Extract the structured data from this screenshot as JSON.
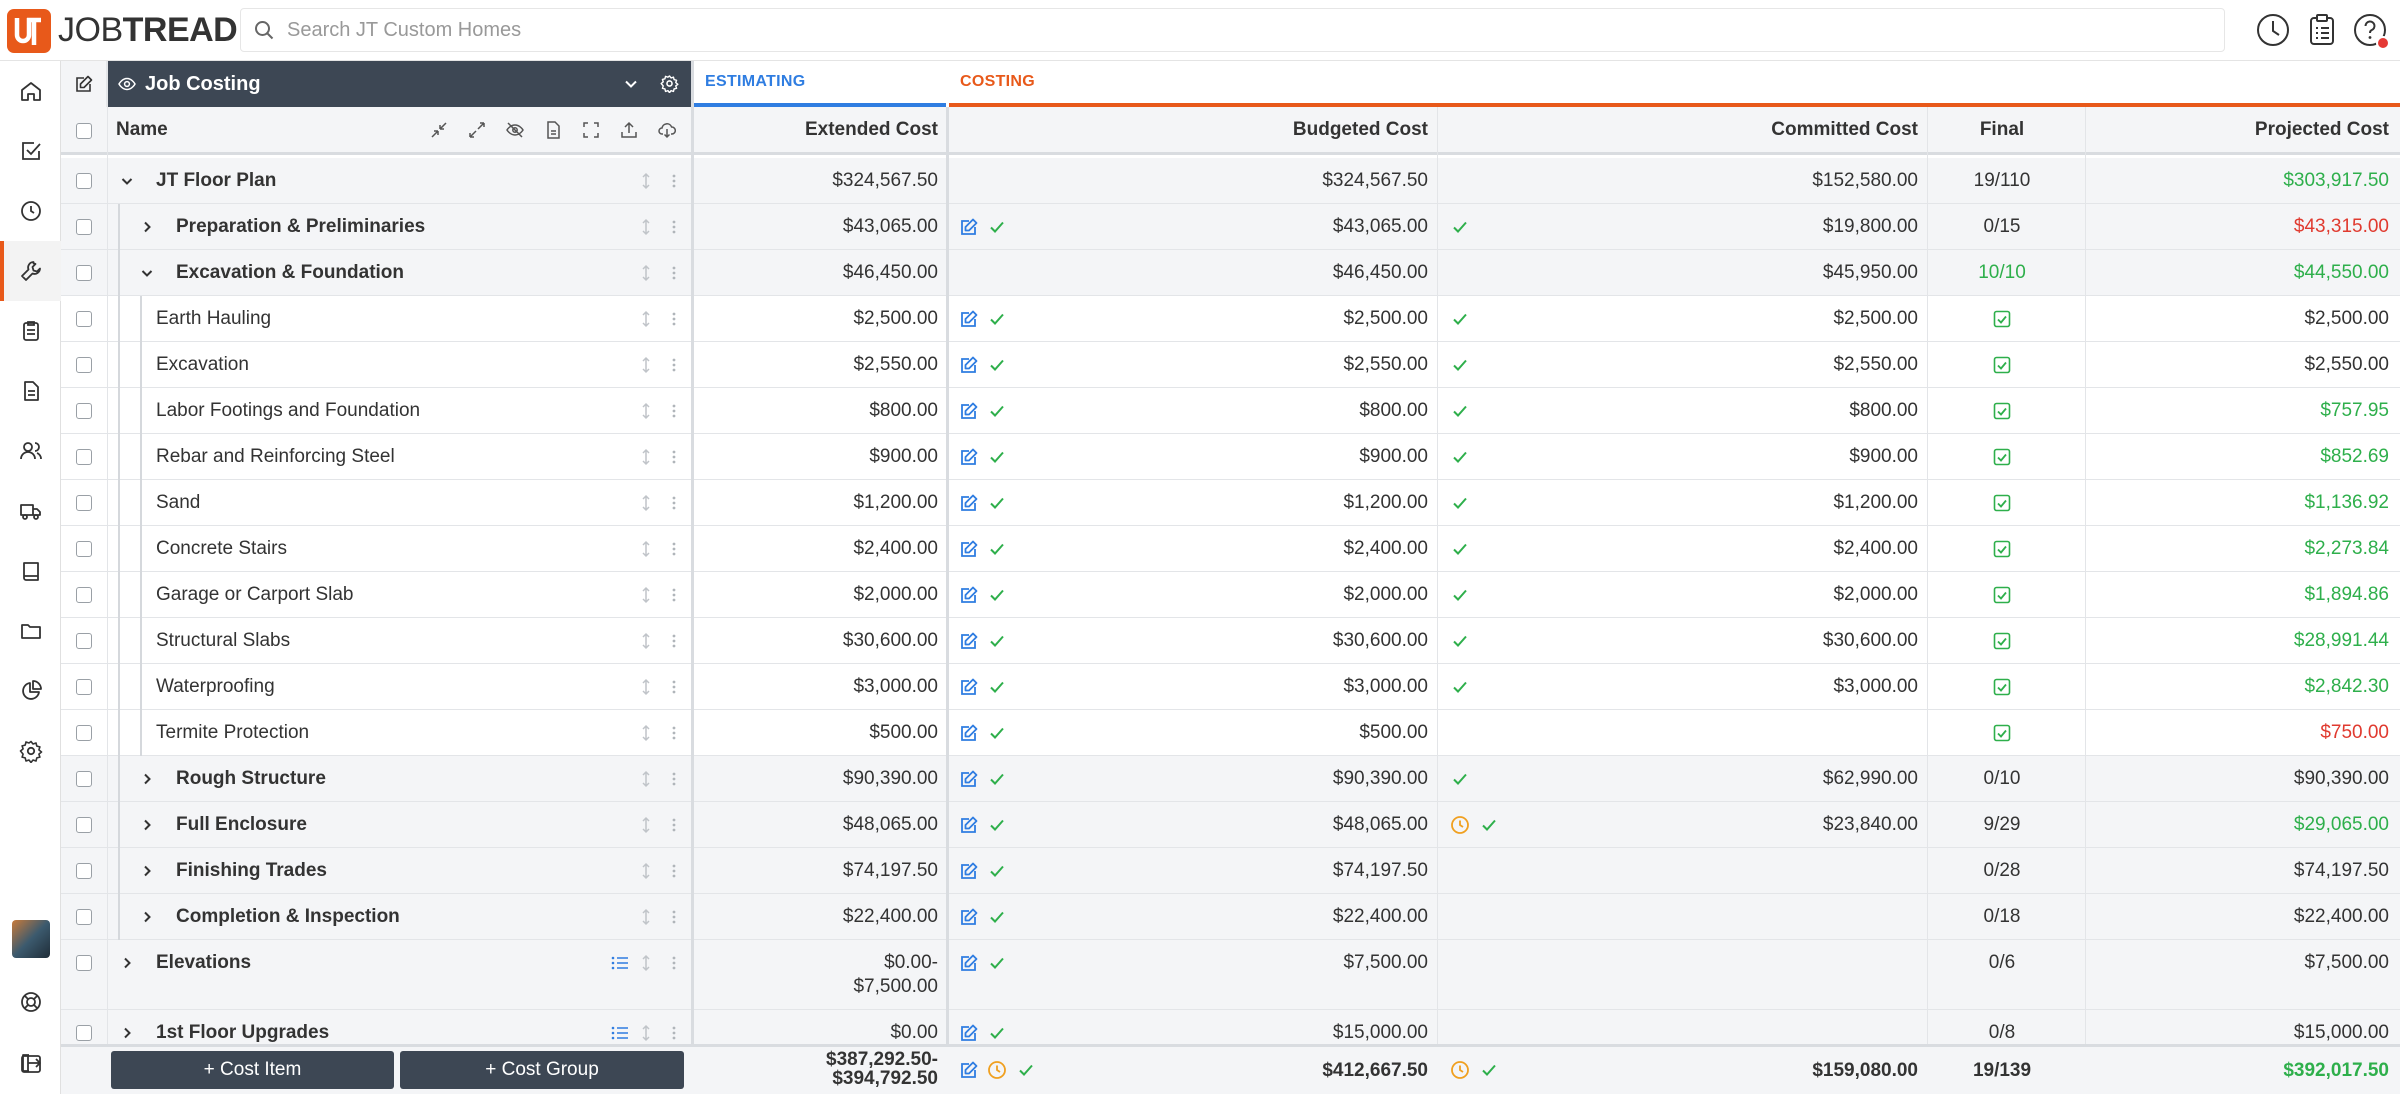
{
  "app": {
    "logo_text_light": "JOB",
    "logo_text_bold": "TREAD"
  },
  "search": {
    "placeholder": "Search JT Custom Homes"
  },
  "view": {
    "title": "Job Costing"
  },
  "phases": {
    "estimating": "ESTIMATING",
    "costing": "COSTING"
  },
  "columns": {
    "name": "Name",
    "extended_cost": "Extended Cost",
    "budgeted_cost": "Budgeted Cost",
    "committed_cost": "Committed Cost",
    "final": "Final",
    "projected_cost": "Projected Cost"
  },
  "colors": {
    "accent": "#e8591a",
    "estimating": "#2f7de1",
    "header_dark": "#3d4754",
    "green": "#2eaf4b",
    "red": "#e03a2f",
    "clock": "#f0a020"
  },
  "sidebar_icons": [
    "home-icon",
    "tasks-icon",
    "clock-icon",
    "wrench-icon",
    "clipboard-icon",
    "document-icon",
    "users-icon",
    "truck-icon",
    "book-icon",
    "folder-icon",
    "pie-chart-icon",
    "settings-icon"
  ],
  "rows": [
    {
      "level": 0,
      "kind": "group",
      "expanded": true,
      "name": "JT Floor Plan",
      "extended": "$324,567.50",
      "budgeted": "$324,567.50",
      "budget_icons": false,
      "committed": "$152,580.00",
      "committed_icons": [],
      "final": "19/110",
      "final_color": "",
      "projected": "$303,917.50",
      "projected_color": "green"
    },
    {
      "level": 1,
      "kind": "group",
      "expanded": false,
      "name": "Preparation & Preliminaries",
      "extended": "$43,065.00",
      "budgeted": "$43,065.00",
      "budget_icons": true,
      "committed": "$19,800.00",
      "committed_icons": [
        "check"
      ],
      "final": "0/15",
      "final_color": "",
      "projected": "$43,315.00",
      "projected_color": "red"
    },
    {
      "level": 1,
      "kind": "group",
      "expanded": true,
      "name": "Excavation & Foundation",
      "extended": "$46,450.00",
      "budgeted": "$46,450.00",
      "budget_icons": false,
      "committed": "$45,950.00",
      "committed_icons": [],
      "final": "10/10",
      "final_color": "green",
      "projected": "$44,550.00",
      "projected_color": "green"
    },
    {
      "level": 2,
      "kind": "item",
      "name": "Earth Hauling",
      "extended": "$2,500.00",
      "budgeted": "$2,500.00",
      "budget_icons": true,
      "committed": "$2,500.00",
      "committed_icons": [
        "check"
      ],
      "final": "",
      "final_check": true,
      "projected": "$2,500.00",
      "projected_color": ""
    },
    {
      "level": 2,
      "kind": "item",
      "name": "Excavation",
      "extended": "$2,550.00",
      "budgeted": "$2,550.00",
      "budget_icons": true,
      "committed": "$2,550.00",
      "committed_icons": [
        "check"
      ],
      "final": "",
      "final_check": true,
      "projected": "$2,550.00",
      "projected_color": ""
    },
    {
      "level": 2,
      "kind": "item",
      "name": "Labor Footings and Foundation",
      "extended": "$800.00",
      "budgeted": "$800.00",
      "budget_icons": true,
      "committed": "$800.00",
      "committed_icons": [
        "check"
      ],
      "final": "",
      "final_check": true,
      "projected": "$757.95",
      "projected_color": "green"
    },
    {
      "level": 2,
      "kind": "item",
      "name": "Rebar and Reinforcing Steel",
      "extended": "$900.00",
      "budgeted": "$900.00",
      "budget_icons": true,
      "committed": "$900.00",
      "committed_icons": [
        "check"
      ],
      "final": "",
      "final_check": true,
      "projected": "$852.69",
      "projected_color": "green"
    },
    {
      "level": 2,
      "kind": "item",
      "name": "Sand",
      "extended": "$1,200.00",
      "budgeted": "$1,200.00",
      "budget_icons": true,
      "committed": "$1,200.00",
      "committed_icons": [
        "check"
      ],
      "final": "",
      "final_check": true,
      "projected": "$1,136.92",
      "projected_color": "green"
    },
    {
      "level": 2,
      "kind": "item",
      "name": "Concrete Stairs",
      "extended": "$2,400.00",
      "budgeted": "$2,400.00",
      "budget_icons": true,
      "committed": "$2,400.00",
      "committed_icons": [
        "check"
      ],
      "final": "",
      "final_check": true,
      "projected": "$2,273.84",
      "projected_color": "green"
    },
    {
      "level": 2,
      "kind": "item",
      "name": "Garage or Carport Slab",
      "extended": "$2,000.00",
      "budgeted": "$2,000.00",
      "budget_icons": true,
      "committed": "$2,000.00",
      "committed_icons": [
        "check"
      ],
      "final": "",
      "final_check": true,
      "projected": "$1,894.86",
      "projected_color": "green"
    },
    {
      "level": 2,
      "kind": "item",
      "name": "Structural Slabs",
      "extended": "$30,600.00",
      "budgeted": "$30,600.00",
      "budget_icons": true,
      "committed": "$30,600.00",
      "committed_icons": [
        "check"
      ],
      "final": "",
      "final_check": true,
      "projected": "$28,991.44",
      "projected_color": "green"
    },
    {
      "level": 2,
      "kind": "item",
      "name": "Waterproofing",
      "extended": "$3,000.00",
      "budgeted": "$3,000.00",
      "budget_icons": true,
      "committed": "$3,000.00",
      "committed_icons": [
        "check"
      ],
      "final": "",
      "final_check": true,
      "projected": "$2,842.30",
      "projected_color": "green"
    },
    {
      "level": 2,
      "kind": "item",
      "name": "Termite Protection",
      "extended": "$500.00",
      "budgeted": "$500.00",
      "budget_icons": true,
      "committed": "",
      "committed_icons": [],
      "final": "",
      "final_check": true,
      "projected": "$750.00",
      "projected_color": "red"
    },
    {
      "level": 1,
      "kind": "group",
      "expanded": false,
      "name": "Rough Structure",
      "extended": "$90,390.00",
      "budgeted": "$90,390.00",
      "budget_icons": true,
      "committed": "$62,990.00",
      "committed_icons": [
        "check"
      ],
      "final": "0/10",
      "final_color": "",
      "projected": "$90,390.00",
      "projected_color": ""
    },
    {
      "level": 1,
      "kind": "group",
      "expanded": false,
      "name": "Full Enclosure",
      "extended": "$48,065.00",
      "budgeted": "$48,065.00",
      "budget_icons": true,
      "committed": "$23,840.00",
      "committed_icons": [
        "clock",
        "check"
      ],
      "final": "9/29",
      "final_color": "",
      "projected": "$29,065.00",
      "projected_color": "green"
    },
    {
      "level": 1,
      "kind": "group",
      "expanded": false,
      "name": "Finishing Trades",
      "extended": "$74,197.50",
      "budgeted": "$74,197.50",
      "budget_icons": true,
      "committed": "",
      "committed_icons": [],
      "final": "0/28",
      "final_color": "",
      "projected": "$74,197.50",
      "projected_color": ""
    },
    {
      "level": 1,
      "kind": "group",
      "expanded": false,
      "name": "Completion & Inspection",
      "extended": "$22,400.00",
      "budgeted": "$22,400.00",
      "budget_icons": true,
      "committed": "",
      "committed_icons": [],
      "final": "0/18",
      "final_color": "",
      "projected": "$22,400.00",
      "projected_color": ""
    },
    {
      "level": 0,
      "kind": "group",
      "expanded": false,
      "name": "Elevations",
      "list_icon": true,
      "extended": "$0.00-",
      "extended2": "$7,500.00",
      "budgeted": "$7,500.00",
      "budget_icons": true,
      "committed": "",
      "committed_icons": [],
      "final": "0/6",
      "final_color": "",
      "projected": "$7,500.00",
      "projected_color": ""
    },
    {
      "level": 0,
      "kind": "group",
      "expanded": false,
      "name": "1st Floor Upgrades",
      "list_icon": true,
      "extended": "$0.00",
      "budgeted": "$15,000.00",
      "budget_icons": true,
      "committed": "",
      "committed_icons": [],
      "final": "0/8",
      "final_color": "",
      "projected": "$15,000.00",
      "projected_color": ""
    }
  ],
  "footer": {
    "add_cost_item": "+ Cost Item",
    "add_cost_group": "+ Cost Group",
    "extended_line1": "$387,292.50-",
    "extended_line2": "$394,792.50",
    "budgeted": "$412,667.50",
    "committed": "$159,080.00",
    "final": "19/139",
    "projected": "$392,017.50"
  }
}
